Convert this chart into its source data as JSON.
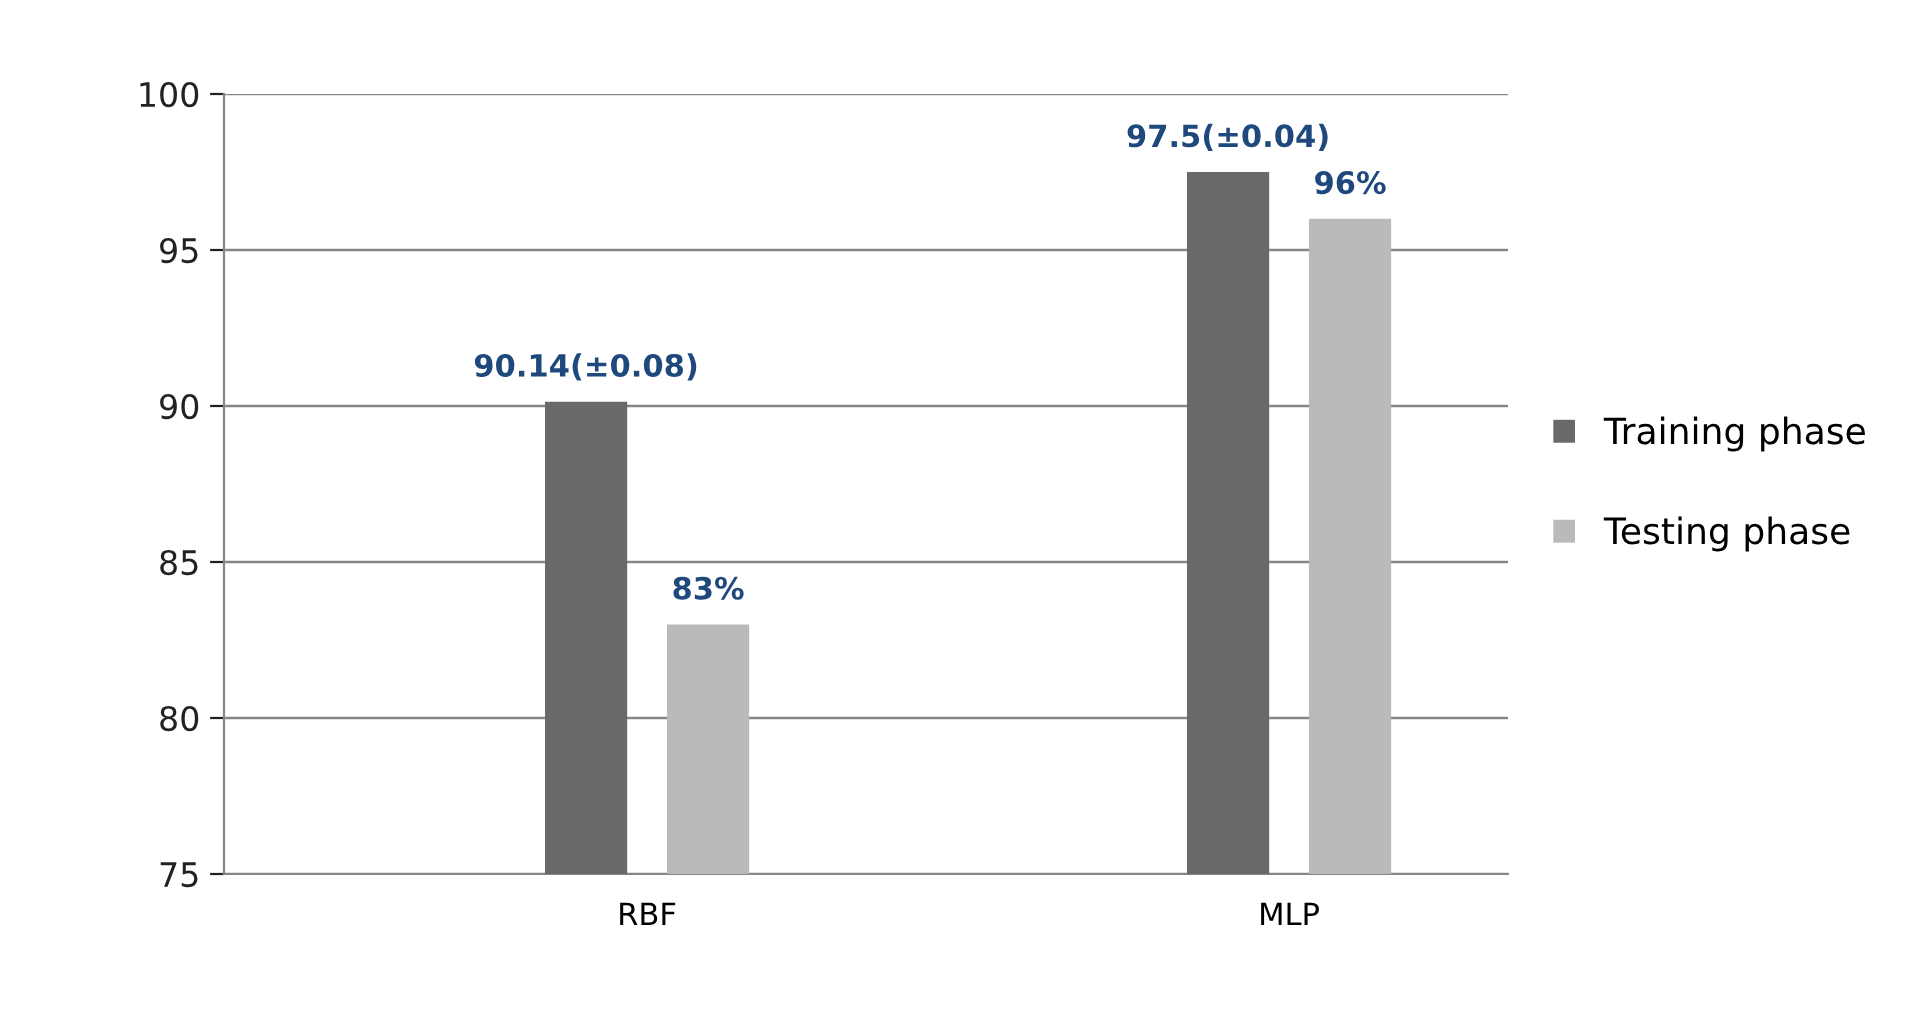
{
  "chart_data": {
    "type": "bar",
    "categories": [
      "RBF",
      "MLP"
    ],
    "series": [
      {
        "name": "Training phase",
        "color": "#696969",
        "values": [
          90.14,
          97.5
        ],
        "value_labels": [
          "90.14(±0.08)",
          "97.5(±0.04)"
        ]
      },
      {
        "name": "Testing phase",
        "color": "#bababa",
        "values": [
          83,
          96
        ],
        "value_labels": [
          "83%",
          "96%"
        ]
      }
    ],
    "ylim": [
      75,
      100
    ],
    "yticks": [
      75,
      80,
      85,
      90,
      95,
      100
    ],
    "grid": "y",
    "legend": "right"
  }
}
